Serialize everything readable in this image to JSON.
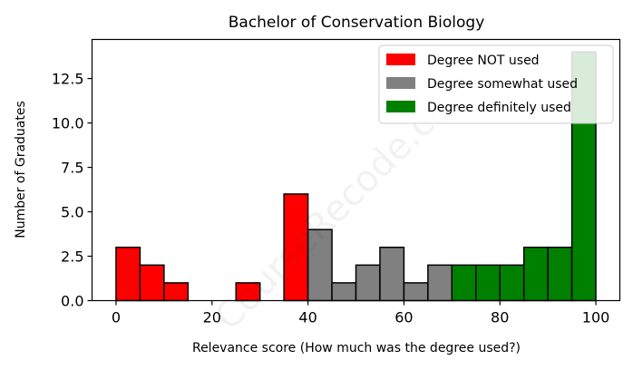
{
  "chart_data": {
    "type": "bar",
    "title": "Bachelor of Conservation Biology",
    "xlabel": "Relevance score (How much was the degree used?)",
    "ylabel": "Number of Graduates",
    "xlim": [
      -5,
      105
    ],
    "ylim": [
      0,
      14.7
    ],
    "bin_width": 5,
    "xticks": [
      0,
      20,
      40,
      60,
      80,
      100
    ],
    "yticks": [
      0.0,
      2.5,
      5.0,
      7.5,
      10.0,
      12.5
    ],
    "ytick_labels": [
      "0.0",
      "2.5",
      "5.0",
      "7.5",
      "10.0",
      "12.5"
    ],
    "grid": false,
    "legend_position": "top-right",
    "series": [
      {
        "name": "Degree NOT used",
        "color": "#ff0000",
        "bins": [
          {
            "x": 0,
            "value": 3
          },
          {
            "x": 5,
            "value": 2
          },
          {
            "x": 10,
            "value": 1
          },
          {
            "x": 15,
            "value": 0
          },
          {
            "x": 20,
            "value": 0
          },
          {
            "x": 25,
            "value": 1
          },
          {
            "x": 30,
            "value": 0
          },
          {
            "x": 35,
            "value": 6
          }
        ]
      },
      {
        "name": "Degree somewhat used",
        "color": "#808080",
        "bins": [
          {
            "x": 40,
            "value": 4
          },
          {
            "x": 45,
            "value": 1
          },
          {
            "x": 50,
            "value": 2
          },
          {
            "x": 55,
            "value": 3
          },
          {
            "x": 60,
            "value": 1
          },
          {
            "x": 65,
            "value": 2
          }
        ]
      },
      {
        "name": "Degree definitely used",
        "color": "#008000",
        "bins": [
          {
            "x": 70,
            "value": 2
          },
          {
            "x": 75,
            "value": 2
          },
          {
            "x": 80,
            "value": 2
          },
          {
            "x": 85,
            "value": 3
          },
          {
            "x": 90,
            "value": 3
          },
          {
            "x": 95,
            "value": 14
          }
        ]
      }
    ]
  },
  "watermark": "CourseRecode.com"
}
